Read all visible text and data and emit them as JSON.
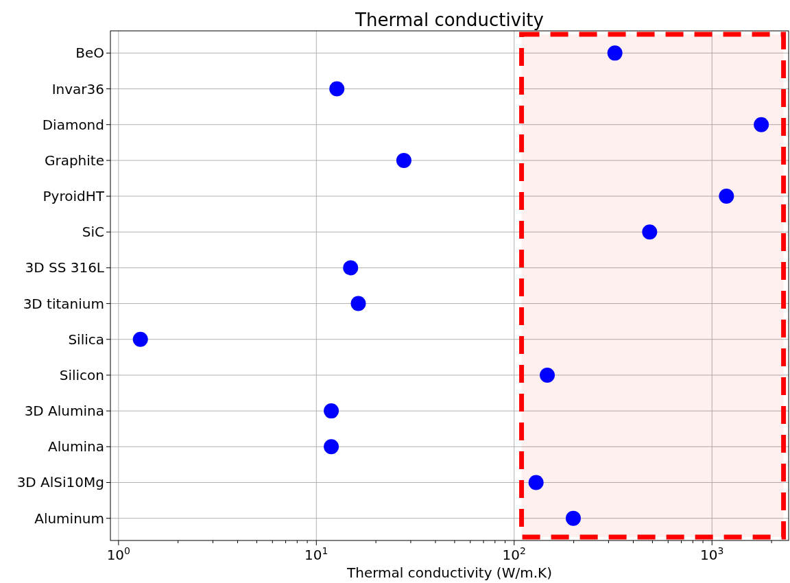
{
  "chart_data": {
    "type": "scatter",
    "title": "Thermal conductivity",
    "xlabel": "Thermal conductivity (W/m.K)",
    "orientation": "horizontal",
    "categories": [
      "BeO",
      "Invar36",
      "Diamond",
      "Graphite",
      "PyroidHT",
      "SiC",
      "3D SS 316L",
      "3D titanium",
      "Silica",
      "Silicon",
      "3D Alumina",
      "Alumina",
      "3D AlSi10Mg",
      "Aluminum"
    ],
    "series": [
      {
        "color": "#0000ff",
        "values": [
          323,
          12.7,
          1775,
          27.7,
          1183,
          484,
          14.9,
          16.3,
          1.29,
          147,
          11.9,
          11.9,
          129,
          199
        ]
      }
    ],
    "log": "x",
    "xlim": [
      0.91,
      2440
    ],
    "xticks": [
      {
        "value": 1,
        "label": "10$^{0}$"
      },
      {
        "value": 10,
        "label": "10$^{1}$"
      },
      {
        "value": 100,
        "label": "10$^{2}$"
      },
      {
        "value": 1000,
        "label": "10$^{3}$"
      },
      {
        "value": 2,
        "label": null
      },
      {
        "value": 3,
        "label": null
      },
      {
        "value": 4,
        "label": null
      },
      {
        "value": 5,
        "label": null
      },
      {
        "value": 6,
        "label": null
      },
      {
        "value": 7,
        "label": null
      },
      {
        "value": 8,
        "label": null
      },
      {
        "value": 9,
        "label": null
      },
      {
        "value": 20,
        "label": null
      },
      {
        "value": 30,
        "label": null
      },
      {
        "value": 40,
        "label": null
      },
      {
        "value": 50,
        "label": null
      },
      {
        "value": 60,
        "label": null
      },
      {
        "value": 70,
        "label": null
      },
      {
        "value": 80,
        "label": null
      },
      {
        "value": 90,
        "label": null
      },
      {
        "value": 200,
        "label": null
      },
      {
        "value": 300,
        "label": null
      },
      {
        "value": 400,
        "label": null
      },
      {
        "value": 500,
        "label": null
      },
      {
        "value": 600,
        "label": null
      },
      {
        "value": 700,
        "label": null
      },
      {
        "value": 800,
        "label": null
      },
      {
        "value": 900,
        "label": null
      },
      {
        "value": 2000,
        "label": null
      }
    ],
    "bands": [
      {
        "axis": "x",
        "from": 109,
        "to": 2300,
        "color": "#ff0000"
      }
    ],
    "grid": true,
    "marker": "circle"
  }
}
